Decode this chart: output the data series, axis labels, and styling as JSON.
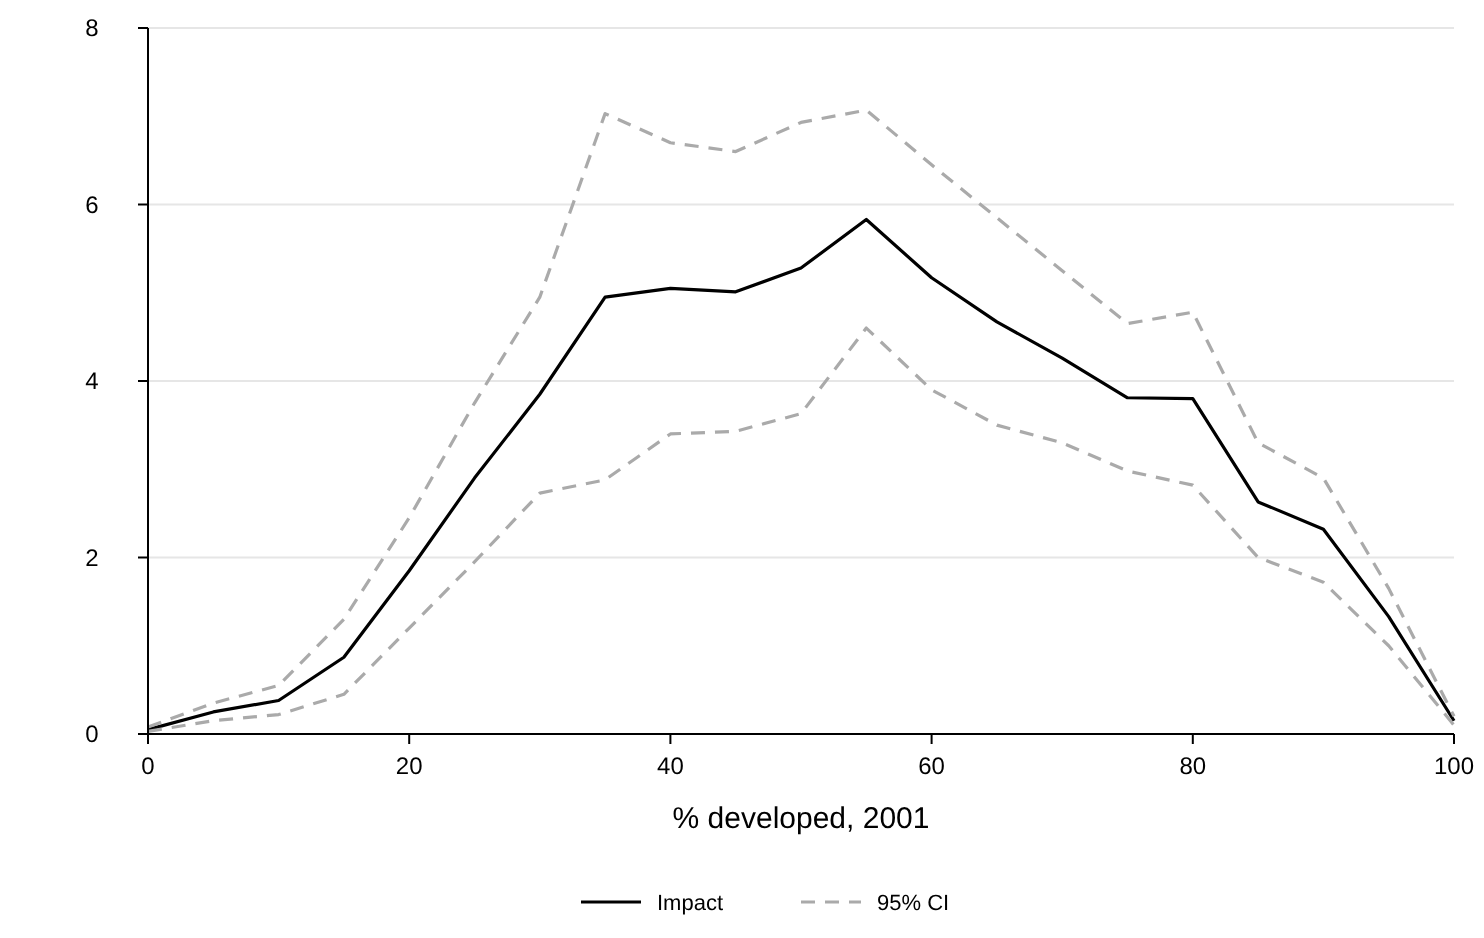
{
  "chart_data": {
    "type": "line",
    "xlabel": "% developed, 2001",
    "x": [
      0,
      5,
      10,
      15,
      20,
      25,
      30,
      35,
      40,
      45,
      50,
      55,
      60,
      65,
      70,
      75,
      80,
      85,
      90,
      95,
      100
    ],
    "series": [
      {
        "name": "Impact",
        "color": "#000000",
        "line_style": "solid",
        "values": [
          0.05,
          0.25,
          0.38,
          0.87,
          1.85,
          2.9,
          3.85,
          4.95,
          5.05,
          5.01,
          5.28,
          5.83,
          5.17,
          4.67,
          4.26,
          3.81,
          3.8,
          2.63,
          2.32,
          1.33,
          0.15
        ]
      },
      {
        "name": "95% CI",
        "color": "#aaaaaa",
        "line_style": "dashed",
        "values": [
          0.08,
          0.35,
          0.55,
          1.3,
          2.45,
          3.75,
          4.95,
          7.03,
          6.7,
          6.6,
          6.93,
          7.07,
          6.45,
          5.85,
          5.25,
          4.65,
          4.78,
          3.3,
          2.9,
          1.65,
          0.2
        ]
      },
      {
        "color": "#aaaaaa",
        "line_style": "dashed",
        "values": [
          0.03,
          0.15,
          0.22,
          0.45,
          1.2,
          1.95,
          2.73,
          2.88,
          3.4,
          3.43,
          3.63,
          4.6,
          3.9,
          3.5,
          3.3,
          2.98,
          2.82,
          2.0,
          1.72,
          1.0,
          0.1
        ]
      }
    ],
    "xlim": [
      0,
      100
    ],
    "xticks": [
      0,
      20,
      40,
      60,
      80,
      100
    ],
    "ylim": [
      0,
      8
    ],
    "yticks": [
      0,
      2,
      4,
      6,
      8
    ],
    "grid": "y",
    "legend": "bottom"
  }
}
